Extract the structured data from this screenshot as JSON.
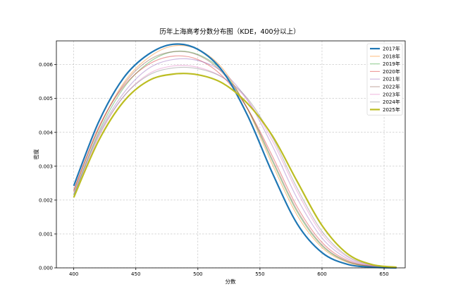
{
  "chart_data": {
    "type": "line",
    "title": "历年上海高考分数分布图（KDE，400分以上）",
    "xlabel": "分数",
    "ylabel": "密度",
    "xlim": [
      386,
      667
    ],
    "ylim": [
      0,
      0.0067
    ],
    "x_ticks": [
      400,
      450,
      500,
      550,
      600,
      650
    ],
    "x_tick_labels": [
      "400",
      "450",
      "500",
      "550",
      "600",
      "650"
    ],
    "y_ticks": [
      0,
      0.001,
      0.002,
      0.003,
      0.004,
      0.005,
      0.006
    ],
    "y_tick_labels": [
      "0.000",
      "0.001",
      "0.002",
      "0.003",
      "0.004",
      "0.005",
      "0.006"
    ],
    "grid": true,
    "legend_position": "top-right",
    "x": [
      400,
      420,
      440,
      460,
      480,
      500,
      520,
      540,
      560,
      580,
      600,
      620,
      640,
      660
    ],
    "series": [
      {
        "name": "2017年",
        "color": "#1f77b4",
        "emphasis": true,
        "values": [
          0.00242,
          0.0043,
          0.0056,
          0.0063,
          0.0066,
          0.00645,
          0.0058,
          0.0045,
          0.0028,
          0.0013,
          0.00045,
          0.00011,
          2e-05,
          0.0
        ]
      },
      {
        "name": "2018年",
        "color": "#ff7f0e",
        "emphasis": false,
        "values": [
          0.00225,
          0.0041,
          0.00545,
          0.0062,
          0.00655,
          0.00645,
          0.00588,
          0.00468,
          0.00305,
          0.00155,
          0.0006,
          0.00017,
          4e-05,
          1e-05
        ]
      },
      {
        "name": "2019年",
        "color": "#2ca02c",
        "emphasis": false,
        "values": [
          0.00215,
          0.004,
          0.0053,
          0.00605,
          0.00638,
          0.0063,
          0.0058,
          0.0047,
          0.00315,
          0.00165,
          0.00065,
          0.00019,
          4e-05,
          1e-05
        ]
      },
      {
        "name": "2020年",
        "color": "#d62728",
        "emphasis": false,
        "values": [
          0.0023,
          0.00415,
          0.00535,
          0.006,
          0.00625,
          0.00615,
          0.00565,
          0.0047,
          0.0033,
          0.0018,
          0.00075,
          0.00023,
          5e-05,
          1e-05
        ]
      },
      {
        "name": "2021年",
        "color": "#9467bd",
        "emphasis": false,
        "values": [
          0.0022,
          0.00395,
          0.00515,
          0.00588,
          0.00615,
          0.00612,
          0.00578,
          0.00495,
          0.0036,
          0.00205,
          0.00088,
          0.00028,
          6e-05,
          1e-05
        ]
      },
      {
        "name": "2022年",
        "color": "#8c564b",
        "emphasis": false,
        "values": [
          0.00228,
          0.0041,
          0.0054,
          0.00612,
          0.00638,
          0.00628,
          0.00575,
          0.0047,
          0.0032,
          0.0017,
          0.00068,
          0.0002,
          4e-05,
          1e-05
        ]
      },
      {
        "name": "2023年",
        "color": "#e377c2",
        "emphasis": false,
        "values": [
          0.0021,
          0.00385,
          0.00505,
          0.00572,
          0.00596,
          0.00592,
          0.00562,
          0.00495,
          0.00375,
          0.00225,
          0.001,
          0.00033,
          7e-05,
          1e-05
        ]
      },
      {
        "name": "2024年",
        "color": "#7f7f7f",
        "emphasis": false,
        "values": [
          0.00215,
          0.0039,
          0.00505,
          0.00568,
          0.0059,
          0.00588,
          0.00562,
          0.005,
          0.00385,
          0.00235,
          0.00108,
          0.00036,
          8e-05,
          1e-05
        ]
      },
      {
        "name": "2025年",
        "color": "#bcbd22",
        "emphasis": true,
        "values": [
          0.00208,
          0.00375,
          0.0049,
          0.00552,
          0.00572,
          0.0057,
          0.00545,
          0.00485,
          0.0039,
          0.00255,
          0.00125,
          0.00043,
          0.0001,
          2e-05
        ]
      }
    ]
  }
}
